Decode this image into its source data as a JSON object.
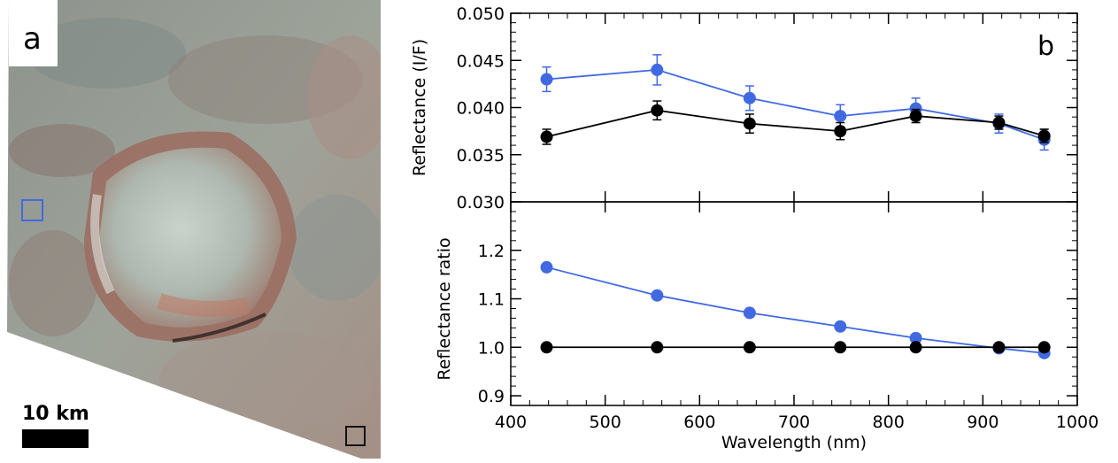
{
  "panel_a": {
    "label": "a",
    "scale_bar_label": "10 km",
    "colors": {
      "blue_box": "#4169e1",
      "black_box": "#111111",
      "terrain": "#9a9a8e",
      "rim_red": "#9a5a4a"
    }
  },
  "chart_data": [
    {
      "type": "line",
      "panel_label": "b",
      "title": "",
      "xlabel": "",
      "ylabel": "Reflectance (I/F)",
      "xlim": [
        400,
        1000
      ],
      "ylim": [
        0.03,
        0.05
      ],
      "yticks": [
        "0.030",
        "0.035",
        "0.040",
        "0.045",
        "0.050"
      ],
      "yticks_values": [
        0.03,
        0.035,
        0.04,
        0.045,
        0.05
      ],
      "grid": false,
      "series": [
        {
          "color": "#4169e1",
          "x": [
            438,
            555,
            653,
            749,
            829,
            917,
            965
          ],
          "y": [
            0.043,
            0.044,
            0.041,
            0.0391,
            0.0399,
            0.0383,
            0.0366
          ],
          "err": [
            0.0013,
            0.0016,
            0.0013,
            0.0012,
            0.0011,
            0.001,
            0.0011
          ]
        },
        {
          "color": "#000000",
          "x": [
            438,
            555,
            653,
            749,
            829,
            917,
            965
          ],
          "y": [
            0.0369,
            0.0397,
            0.0383,
            0.0375,
            0.0391,
            0.0384,
            0.037
          ],
          "err": [
            0.0008,
            0.001,
            0.001,
            0.0009,
            0.0007,
            0.0007,
            0.0007
          ]
        }
      ]
    },
    {
      "type": "line",
      "title": "",
      "xlabel": "Wavelength (nm)",
      "ylabel": "Reflectance ratio",
      "xlim": [
        400,
        1000
      ],
      "ylim": [
        0.88,
        1.3
      ],
      "xticks": [
        "400",
        "500",
        "600",
        "700",
        "800",
        "900",
        "1000"
      ],
      "xticks_values": [
        400,
        500,
        600,
        700,
        800,
        900,
        1000
      ],
      "yticks": [
        "0.9",
        "1.0",
        "1.1",
        "1.2"
      ],
      "yticks_values": [
        0.9,
        1.0,
        1.1,
        1.2
      ],
      "grid": false,
      "series": [
        {
          "color": "#4169e1",
          "x": [
            438,
            555,
            653,
            749,
            829,
            917,
            965
          ],
          "y": [
            1.165,
            1.107,
            1.071,
            1.043,
            1.019,
            0.998,
            0.988
          ]
        },
        {
          "color": "#000000",
          "x": [
            438,
            555,
            653,
            749,
            829,
            917,
            965
          ],
          "y": [
            1.0,
            1.0,
            1.0,
            1.0,
            1.0,
            1.0,
            1.0
          ]
        }
      ]
    }
  ]
}
